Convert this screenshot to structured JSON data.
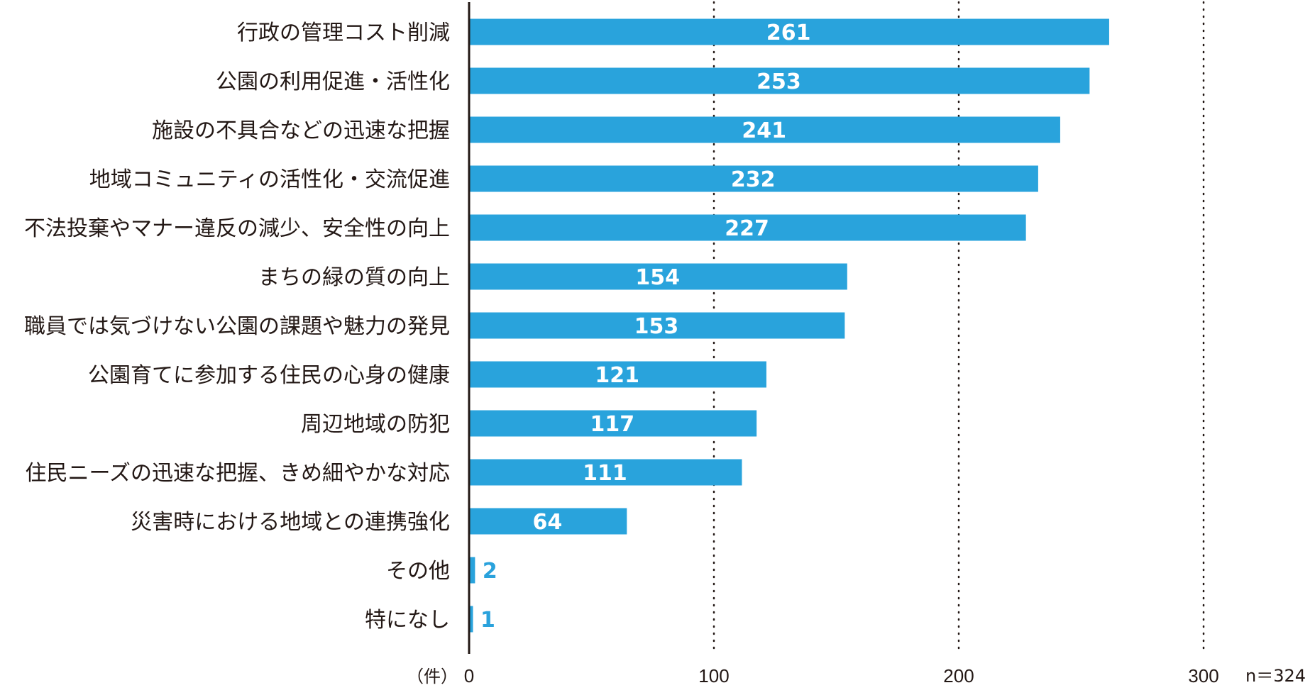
{
  "chart_data": {
    "type": "bar",
    "orientation": "horizontal",
    "categories": [
      "行政の管理コスト削減",
      "公園の利用促進・活性化",
      "施設の不具合などの迅速な把握",
      "地域コミュニティの活性化・交流促進",
      "不法投棄やマナー違反の減少、安全性の向上",
      "まちの緑の質の向上",
      "職員では気づけない公園の課題や魅力の発見",
      "公園育てに参加する住民の心身の健康",
      "周辺地域の防犯",
      "住民ニーズの迅速な把握、きめ細やかな対応",
      "災害時における地域との連携強化",
      "その他",
      "特になし"
    ],
    "values": [
      261,
      253,
      241,
      232,
      227,
      154,
      153,
      121,
      117,
      111,
      64,
      2,
      1
    ],
    "xlim": [
      0,
      300
    ],
    "xticks": [
      "0",
      "100",
      "200",
      "300"
    ],
    "unit_label": "（件）",
    "sample_size_label": "n＝324",
    "grid": "dotted vertical at 100, 200, 300",
    "bar_color": "#29a3dc"
  }
}
